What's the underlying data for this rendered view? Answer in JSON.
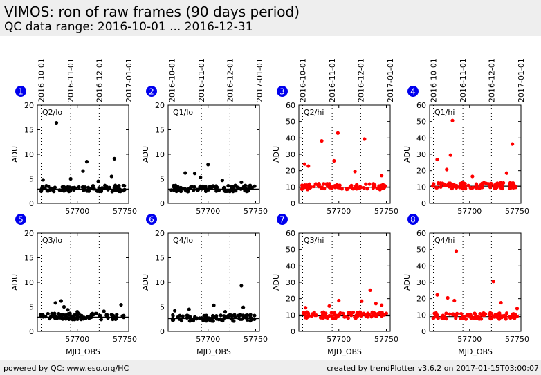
{
  "header": {
    "title": "VIMOS: ron of raw frames (90 days period)",
    "subtitle": "QC data range: 2016-10-01 ... 2016-12-31"
  },
  "footer": {
    "left": "powered by QC: www.eso.org/HC",
    "right": "created by trendPlotter v3.6.2 on 2017-01-15T03:00:07"
  },
  "colors": {
    "lo": "#000000",
    "hi": "#ff0000",
    "badge": "#0000ee"
  },
  "chart_data": {
    "type": "scatter",
    "xlabel": "MJD_OBS",
    "ylabel": "ADU",
    "xlim": [
      57658,
      57754
    ],
    "x_ticks": [
      57700,
      57750
    ],
    "date_markers": [
      {
        "label": "2016-10-01",
        "mjd": 57662
      },
      {
        "label": "2016-11-01",
        "mjd": 57693
      },
      {
        "label": "2016-12-01",
        "mjd": 57723
      },
      {
        "label": "2017-01-01",
        "mjd": 57754
      }
    ],
    "panels": [
      {
        "number": "1",
        "label": "Q2/lo",
        "group": "lo",
        "ylim": [
          0,
          20
        ],
        "y_ticks": [
          0,
          5,
          10,
          15,
          20
        ],
        "ref": 2.9,
        "outliers": [
          [
            57678,
            16.4
          ],
          [
            57706,
            6.6
          ],
          [
            57710,
            8.5
          ],
          [
            57739,
            9.1
          ],
          [
            57664,
            4.8
          ],
          [
            57693,
            5.0
          ],
          [
            57722,
            4.5
          ],
          [
            57736,
            5.5
          ]
        ]
      },
      {
        "number": "2",
        "label": "Q1/lo",
        "group": "lo",
        "ylim": [
          0,
          20
        ],
        "y_ticks": [
          0,
          5,
          10,
          15,
          20
        ],
        "ref": 2.9,
        "outliers": [
          [
            57676,
            6.2
          ],
          [
            57686,
            6.1
          ],
          [
            57700,
            7.9
          ],
          [
            57692,
            5.3
          ],
          [
            57715,
            4.7
          ],
          [
            57735,
            4.3
          ]
        ]
      },
      {
        "number": "3",
        "label": "Q2/hi",
        "group": "hi",
        "ylim": [
          0,
          60
        ],
        "y_ticks": [
          0,
          10,
          20,
          30,
          40,
          50,
          60
        ],
        "ref": 9.8,
        "outliers": [
          [
            57664,
            24.0
          ],
          [
            57668,
            22.8
          ],
          [
            57682,
            38.2
          ],
          [
            57695,
            26.0
          ],
          [
            57699,
            43.0
          ],
          [
            57727,
            39.3
          ],
          [
            57717,
            19.5
          ],
          [
            57745,
            17.0
          ]
        ]
      },
      {
        "number": "4",
        "label": "Q1/hi",
        "group": "hi",
        "ylim": [
          0,
          60
        ],
        "y_ticks": [
          0,
          10,
          20,
          30,
          40,
          50,
          60
        ],
        "ref": 10.5,
        "outliers": [
          [
            57666,
            26.8
          ],
          [
            57676,
            20.7
          ],
          [
            57680,
            29.5
          ],
          [
            57682,
            50.6
          ],
          [
            57739,
            18.5
          ],
          [
            57745,
            36.3
          ],
          [
            57703,
            16.5
          ]
        ]
      },
      {
        "number": "5",
        "label": "Q3/lo",
        "group": "lo",
        "ylim": [
          0,
          20
        ],
        "y_ticks": [
          0,
          5,
          10,
          15,
          20
        ],
        "ref": 2.9,
        "outliers": [
          [
            57677,
            5.8
          ],
          [
            57683,
            6.2
          ],
          [
            57686,
            5.0
          ],
          [
            57690,
            4.4
          ],
          [
            57746,
            5.4
          ],
          [
            57700,
            4.0
          ],
          [
            57728,
            4.1
          ]
        ]
      },
      {
        "number": "6",
        "label": "Q4/lo",
        "group": "lo",
        "ylim": [
          0,
          20
        ],
        "y_ticks": [
          0,
          5,
          10,
          15,
          20
        ],
        "ref": 2.6,
        "outliers": [
          [
            57680,
            4.5
          ],
          [
            57706,
            5.3
          ],
          [
            57735,
            9.3
          ],
          [
            57737,
            4.9
          ],
          [
            57665,
            4.2
          ],
          [
            57718,
            4.0
          ]
        ]
      },
      {
        "number": "7",
        "label": "Q3/hi",
        "group": "hi",
        "ylim": [
          0,
          60
        ],
        "y_ticks": [
          0,
          10,
          20,
          30,
          40,
          50,
          60
        ],
        "ref": 9.5,
        "outliers": [
          [
            57733,
            25.2
          ],
          [
            57724,
            18.5
          ],
          [
            57745,
            16.0
          ],
          [
            57700,
            18.8
          ],
          [
            57665,
            14.5
          ],
          [
            57690,
            15.5
          ],
          [
            57739,
            17.0
          ]
        ]
      },
      {
        "number": "8",
        "label": "Q4/hi",
        "group": "hi",
        "ylim": [
          0,
          60
        ],
        "y_ticks": [
          0,
          10,
          20,
          30,
          40,
          50,
          60
        ],
        "ref": 9.0,
        "outliers": [
          [
            57686,
            49.0
          ],
          [
            57725,
            30.5
          ],
          [
            57666,
            22.3
          ],
          [
            57677,
            20.5
          ],
          [
            57684,
            18.8
          ],
          [
            57733,
            17.5
          ],
          [
            57750,
            14.0
          ]
        ]
      }
    ]
  }
}
